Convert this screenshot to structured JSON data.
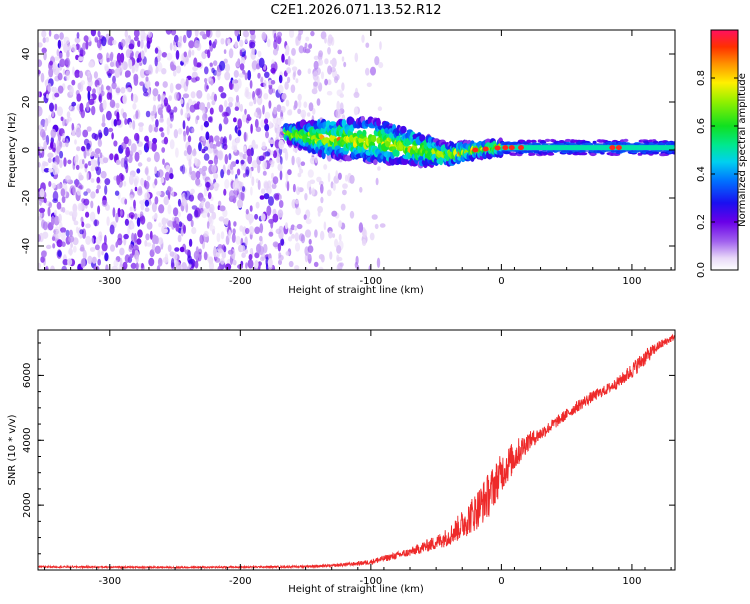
{
  "title": "C2E1.2026.071.13.52.R12",
  "chart_data": [
    {
      "type": "heatmap",
      "xlabel": "Height of straight line (km)",
      "ylabel": "Frequency (Hz)",
      "xlim": [
        -355,
        133
      ],
      "ylim": [
        -50,
        50
      ],
      "xticks": [
        -300,
        -200,
        -100,
        0,
        100
      ],
      "yticks": [
        -40,
        -20,
        0,
        20,
        40
      ],
      "colorbar": {
        "label": "Normalized spectral amplitude",
        "range": [
          0,
          1
        ],
        "ticks": [
          0.0,
          0.2,
          0.4,
          0.6,
          0.8
        ]
      },
      "ridge": {
        "x": [
          -165,
          -140,
          -100,
          -60,
          -40,
          -20,
          0,
          40,
          133
        ],
        "center_hz": [
          7,
          5,
          4,
          0,
          -2,
          0,
          1,
          1,
          1
        ],
        "halfwidth_hz": [
          3,
          7,
          9,
          6,
          4,
          3,
          3,
          3,
          3
        ]
      },
      "noise_regions": [
        {
          "x_from": -355,
          "x_to": -165,
          "density": "high"
        },
        {
          "x_from": -165,
          "x_to": -120,
          "density": "medium"
        },
        {
          "x_from": -120,
          "x_to": -90,
          "density": "low"
        }
      ],
      "peak_marker_x": [
        -20,
        -12,
        -3,
        3,
        8,
        15,
        85,
        90
      ]
    },
    {
      "type": "line",
      "xlabel": "Height of straight line (km)",
      "ylabel": "SNR (10 * v/v)",
      "xlim": [
        -355,
        133
      ],
      "ylim": [
        0,
        7400
      ],
      "xticks": [
        -300,
        -200,
        -100,
        0,
        100
      ],
      "yticks": [
        2000,
        4000,
        6000
      ],
      "series": [
        {
          "name": "SNR",
          "color": "#ee2a2a",
          "x": [
            -355,
            -300,
            -250,
            -200,
            -160,
            -130,
            -110,
            -100,
            -90,
            -80,
            -70,
            -60,
            -50,
            -40,
            -30,
            -20,
            -10,
            0,
            10,
            20,
            30,
            40,
            50,
            60,
            70,
            80,
            90,
            100,
            110,
            120,
            133
          ],
          "y": [
            100,
            90,
            80,
            90,
            100,
            130,
            200,
            250,
            350,
            450,
            550,
            700,
            850,
            1050,
            1400,
            1800,
            2300,
            3000,
            3500,
            3950,
            4200,
            4500,
            4800,
            5100,
            5350,
            5550,
            5800,
            6150,
            6550,
            6900,
            7200
          ],
          "noise_amplitude": [
            25,
            25,
            25,
            25,
            30,
            40,
            60,
            80,
            100,
            110,
            130,
            180,
            220,
            300,
            450,
            600,
            700,
            600,
            500,
            300,
            200,
            180,
            170,
            180,
            170,
            160,
            180,
            250,
            250,
            150,
            100
          ]
        }
      ]
    }
  ]
}
